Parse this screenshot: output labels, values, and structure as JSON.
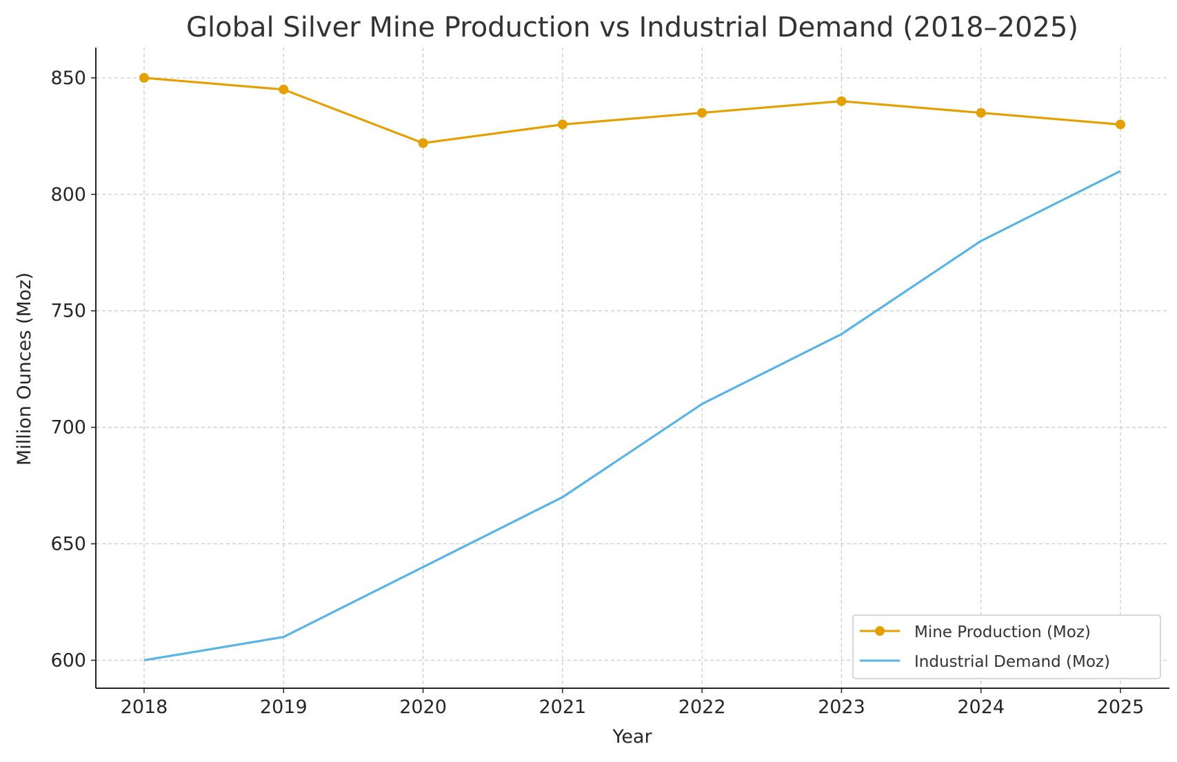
{
  "chart_data": {
    "type": "line",
    "title": "Global Silver Mine Production vs Industrial Demand (2018–2025)",
    "xlabel": "Year",
    "ylabel": "Million Ounces (Moz)",
    "x": [
      2018,
      2019,
      2020,
      2021,
      2022,
      2023,
      2024,
      2025
    ],
    "xtick_labels": [
      "2018",
      "2019",
      "2020",
      "2021",
      "2022",
      "2023",
      "2024",
      "2025"
    ],
    "yticks": [
      600,
      650,
      700,
      750,
      800,
      850
    ],
    "ytick_labels": [
      "600",
      "650",
      "700",
      "750",
      "800",
      "850"
    ],
    "ylim": [
      588,
      863
    ],
    "grid": true,
    "legend_position": "bottom-right",
    "series": [
      {
        "name": "Mine Production (Moz)",
        "values": [
          850,
          845,
          822,
          830,
          835,
          840,
          835,
          830
        ],
        "color": "#E69F00",
        "marker": "circle"
      },
      {
        "name": "Industrial Demand (Moz)",
        "values": [
          600,
          610,
          640,
          670,
          710,
          740,
          780,
          810
        ],
        "color": "#56B4E9",
        "marker": "none"
      }
    ]
  }
}
